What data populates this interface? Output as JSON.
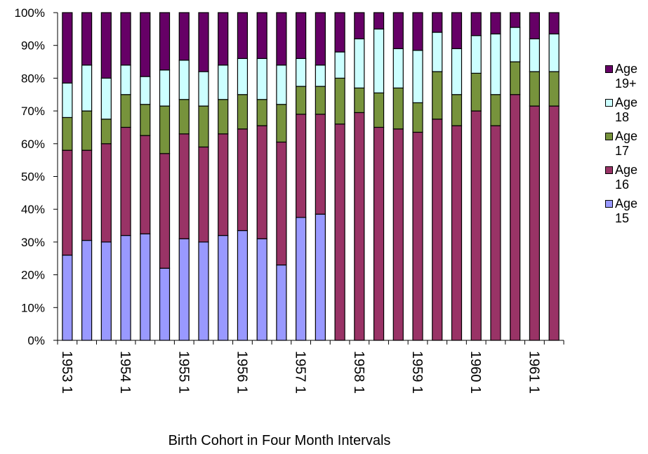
{
  "chart_data": {
    "type": "stacked_bar",
    "x_label": "Birth Cohort in Four Month Intervals",
    "categories": [
      "1953 1",
      null,
      null,
      "1954 1",
      null,
      null,
      "1955 1",
      null,
      null,
      "1956 1",
      null,
      null,
      "1957 1",
      null,
      null,
      "1958 1",
      null,
      null,
      "1959 1",
      null,
      null,
      "1960 1",
      null,
      null,
      "1961 1",
      null
    ],
    "series": [
      {
        "name": "Age 15",
        "color": "#9999ff",
        "values": [
          26,
          30.5,
          30,
          32,
          32.5,
          22,
          31,
          30,
          32,
          33.5,
          31,
          23,
          37.5,
          38.5,
          0,
          0,
          0,
          0,
          0,
          0,
          0,
          0,
          0,
          0,
          0,
          0
        ]
      },
      {
        "name": "Age 16",
        "color": "#993366",
        "values": [
          32,
          27.5,
          30,
          33,
          30,
          35,
          32,
          29,
          31,
          31,
          34.5,
          37.5,
          31.5,
          30.5,
          66,
          69.5,
          65,
          64.5,
          63.5,
          67.5,
          65.5,
          70,
          65.5,
          75,
          71.5,
          71.5
        ]
      },
      {
        "name": "Age 17",
        "color": "#77933c",
        "values": [
          10,
          12,
          7.5,
          10,
          9.5,
          14.5,
          10.5,
          12.5,
          10.5,
          10.5,
          8,
          11.5,
          8.5,
          8.5,
          14,
          7.5,
          10.5,
          12.5,
          9,
          14.5,
          9.5,
          11.5,
          9.5,
          10,
          10.5,
          10.5
        ]
      },
      {
        "name": "Age 18",
        "color": "#ccffff",
        "values": [
          10.5,
          14,
          12.5,
          9,
          8.5,
          11,
          12,
          10.5,
          10.5,
          11,
          12.5,
          12,
          8.5,
          6.5,
          8,
          15,
          19.5,
          12,
          16,
          12,
          14,
          11.5,
          18.5,
          10.5,
          10,
          11.5
        ]
      },
      {
        "name": "Age 19+",
        "color": "#660066",
        "values": [
          21.5,
          16,
          20,
          16,
          19.5,
          17.5,
          14.5,
          18,
          16,
          14,
          14,
          16,
          14,
          16,
          12,
          8,
          5,
          11,
          11.5,
          6,
          11,
          7,
          6.5,
          4.5,
          8,
          6.5
        ]
      }
    ],
    "ylim": [
      0,
      100
    ],
    "yticks": [
      {
        "value": 0,
        "label": "0%"
      },
      {
        "value": 10,
        "label": "10%"
      },
      {
        "value": 20,
        "label": "20%"
      },
      {
        "value": 30,
        "label": "30%"
      },
      {
        "value": 40,
        "label": "40%"
      },
      {
        "value": 50,
        "label": "50%"
      },
      {
        "value": 60,
        "label": "60%"
      },
      {
        "value": 70,
        "label": "70%"
      },
      {
        "value": 80,
        "label": "80%"
      },
      {
        "value": 90,
        "label": "90%"
      },
      {
        "value": 100,
        "label": "100%"
      }
    ]
  }
}
